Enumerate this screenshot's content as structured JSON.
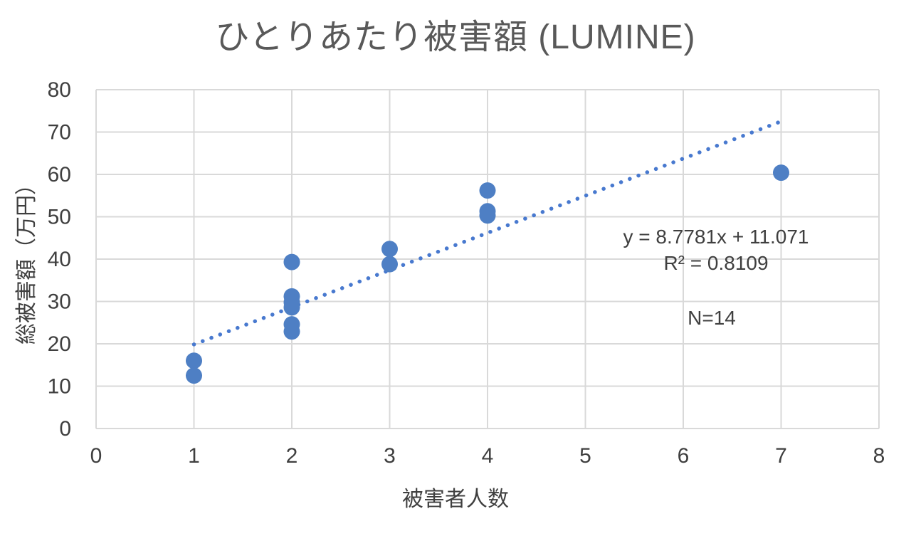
{
  "chart_data": {
    "type": "scatter",
    "title": "ひとりあたり被害額 (LUMINE)",
    "xlabel": "被害者人数",
    "ylabel": "総被害額（万円）",
    "xlim": [
      0,
      8
    ],
    "ylim": [
      0,
      80
    ],
    "xticks": [
      0,
      1,
      2,
      3,
      4,
      5,
      6,
      7,
      8
    ],
    "yticks": [
      0,
      10,
      20,
      30,
      40,
      50,
      60,
      70,
      80
    ],
    "grid": true,
    "legend": "none",
    "points": [
      [
        1,
        16.0
      ],
      [
        1,
        12.5
      ],
      [
        2,
        39.3
      ],
      [
        2,
        31.2
      ],
      [
        2,
        29.8
      ],
      [
        2,
        28.6
      ],
      [
        2,
        24.6
      ],
      [
        2,
        22.9
      ],
      [
        3,
        42.4
      ],
      [
        3,
        38.8
      ],
      [
        4,
        56.2
      ],
      [
        4,
        51.3
      ],
      [
        4,
        50.3
      ],
      [
        7,
        60.4
      ]
    ],
    "trendline": {
      "slope": 8.7781,
      "intercept": 11.071,
      "x_start": 1,
      "x_end": 7,
      "style": "dotted"
    },
    "annotations": {
      "equation": "y = 8.7781x + 11.071",
      "r_squared": "R² = 0.8109",
      "n": "N=14"
    },
    "colors": {
      "marker": "#4e7fc4",
      "trendline": "#4879cf",
      "grid": "#d9d9d9",
      "tick_text": "#3f3f3f",
      "title_text": "#595959"
    }
  }
}
